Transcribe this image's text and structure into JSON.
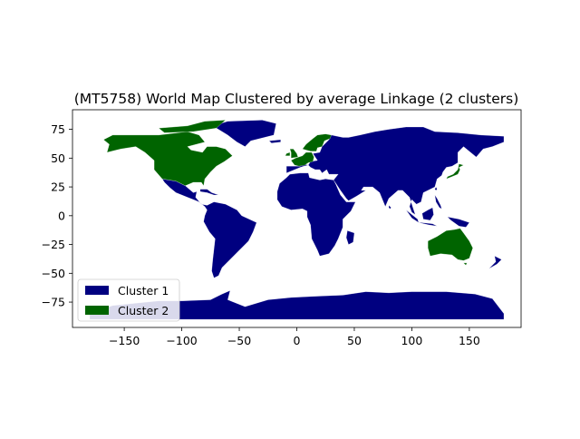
{
  "title": "(MT5758) World Map Clustered by average Linkage (2 clusters)",
  "colors": {
    "cluster_1": "#000080",
    "cluster_2": "#006400",
    "background": "#ffffff",
    "axis": "#000000"
  },
  "axes": {
    "x_ticks": [
      "−150",
      "−100",
      "−50",
      "0",
      "50",
      "100",
      "150"
    ],
    "y_ticks": [
      "75",
      "50",
      "25",
      "0",
      "−25",
      "−50",
      "−75"
    ],
    "xlim": [
      -195,
      195
    ],
    "ylim": [
      -97,
      92
    ]
  },
  "legend": {
    "placement": "lower-left",
    "items": [
      {
        "label": "Cluster 1",
        "color": "#000080"
      },
      {
        "label": "Cluster 2",
        "color": "#006400"
      }
    ]
  },
  "map": {
    "projection": "plate-carree (longitude/latitude)",
    "cluster_1_regions": [
      "Greenland",
      "Latin America",
      "Europe (south/east)",
      "Africa",
      "Asia",
      "Antarctica"
    ],
    "cluster_2_regions": [
      "United States",
      "Canada",
      "Scandinavia",
      "Western Europe",
      "Australia",
      "Japan"
    ]
  }
}
